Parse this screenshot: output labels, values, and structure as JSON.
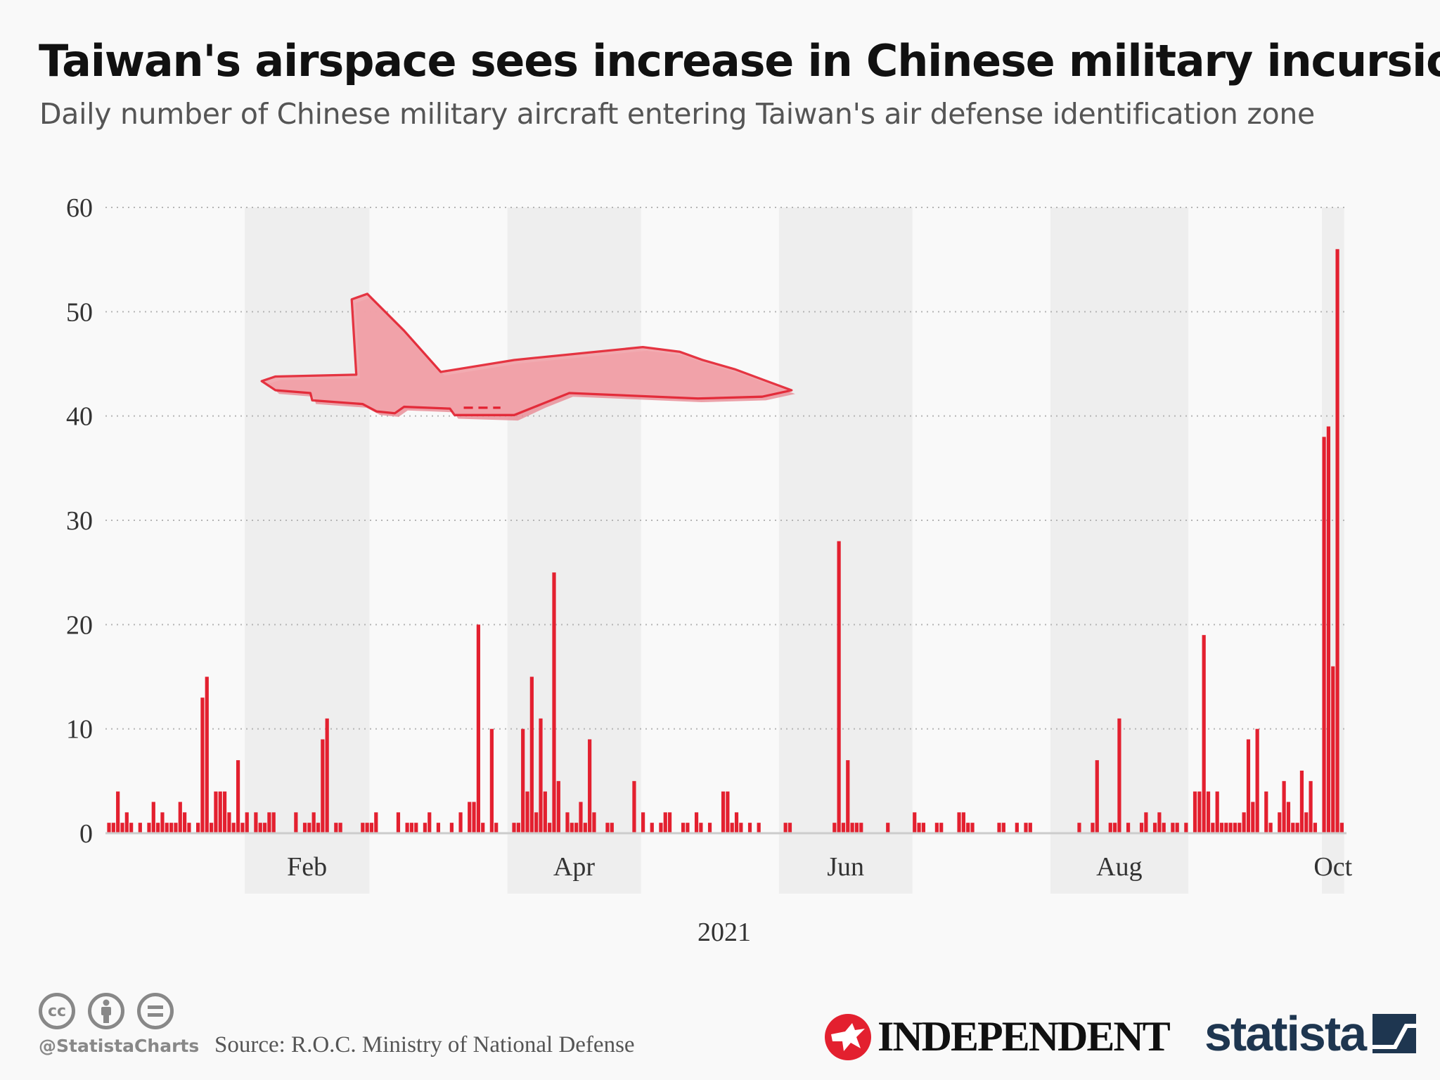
{
  "header": {
    "title": "Taiwan's airspace sees increase in Chinese military incursions",
    "subtitle": "Daily number of Chinese military aircraft entering Taiwan's air defense identification zone"
  },
  "footer": {
    "handle": "@StatistaCharts",
    "source": "Source: R.O.C. Ministry of National Defense",
    "license_icons": [
      "cc-icon",
      "attribution-icon",
      "no-derivatives-icon"
    ],
    "partner_logo": "INDEPENDENT",
    "brand_logo": "statista"
  },
  "chart_data": {
    "type": "bar",
    "title": "",
    "xlabel": "2021",
    "ylabel": "",
    "ylim": [
      0,
      60
    ],
    "yticks": [
      0,
      10,
      20,
      30,
      40,
      50,
      60
    ],
    "xlim": [
      "2021-01-01",
      "2021-10-05"
    ],
    "xtick_labels": [
      {
        "label": "Feb",
        "month": "2021-02"
      },
      {
        "label": "Apr",
        "month": "2021-04"
      },
      {
        "label": "Jun",
        "month": "2021-06"
      },
      {
        "label": "Aug",
        "month": "2021-08"
      },
      {
        "label": "Oct",
        "month": "2021-10"
      }
    ],
    "shaded_months": [
      "2021-02",
      "2021-04",
      "2021-06",
      "2021-08",
      "2021-10"
    ],
    "grid": "horizontal dotted",
    "bar_color": "#e3202f",
    "shade_color": "#eeeeee",
    "points": [
      [
        "2021-01-01",
        1
      ],
      [
        "2021-01-02",
        1
      ],
      [
        "2021-01-03",
        4
      ],
      [
        "2021-01-04",
        1
      ],
      [
        "2021-01-05",
        2
      ],
      [
        "2021-01-06",
        1
      ],
      [
        "2021-01-08",
        1
      ],
      [
        "2021-01-10",
        1
      ],
      [
        "2021-01-11",
        3
      ],
      [
        "2021-01-12",
        1
      ],
      [
        "2021-01-13",
        2
      ],
      [
        "2021-01-14",
        1
      ],
      [
        "2021-01-15",
        1
      ],
      [
        "2021-01-16",
        1
      ],
      [
        "2021-01-17",
        3
      ],
      [
        "2021-01-18",
        2
      ],
      [
        "2021-01-19",
        1
      ],
      [
        "2021-01-21",
        1
      ],
      [
        "2021-01-22",
        13
      ],
      [
        "2021-01-23",
        15
      ],
      [
        "2021-01-24",
        1
      ],
      [
        "2021-01-25",
        4
      ],
      [
        "2021-01-26",
        4
      ],
      [
        "2021-01-27",
        4
      ],
      [
        "2021-01-28",
        2
      ],
      [
        "2021-01-29",
        1
      ],
      [
        "2021-01-30",
        7
      ],
      [
        "2021-01-31",
        1
      ],
      [
        "2021-02-01",
        2
      ],
      [
        "2021-02-03",
        2
      ],
      [
        "2021-02-04",
        1
      ],
      [
        "2021-02-05",
        1
      ],
      [
        "2021-02-06",
        2
      ],
      [
        "2021-02-07",
        2
      ],
      [
        "2021-02-12",
        2
      ],
      [
        "2021-02-14",
        1
      ],
      [
        "2021-02-15",
        1
      ],
      [
        "2021-02-16",
        2
      ],
      [
        "2021-02-17",
        1
      ],
      [
        "2021-02-18",
        9
      ],
      [
        "2021-02-19",
        11
      ],
      [
        "2021-02-21",
        1
      ],
      [
        "2021-02-22",
        1
      ],
      [
        "2021-02-27",
        1
      ],
      [
        "2021-02-28",
        1
      ],
      [
        "2021-03-01",
        1
      ],
      [
        "2021-03-02",
        2
      ],
      [
        "2021-03-07",
        2
      ],
      [
        "2021-03-09",
        1
      ],
      [
        "2021-03-10",
        1
      ],
      [
        "2021-03-11",
        1
      ],
      [
        "2021-03-13",
        1
      ],
      [
        "2021-03-14",
        2
      ],
      [
        "2021-03-16",
        1
      ],
      [
        "2021-03-19",
        1
      ],
      [
        "2021-03-21",
        2
      ],
      [
        "2021-03-23",
        3
      ],
      [
        "2021-03-24",
        3
      ],
      [
        "2021-03-25",
        20
      ],
      [
        "2021-03-26",
        1
      ],
      [
        "2021-03-28",
        10
      ],
      [
        "2021-03-29",
        1
      ],
      [
        "2021-04-02",
        1
      ],
      [
        "2021-04-03",
        1
      ],
      [
        "2021-04-04",
        10
      ],
      [
        "2021-04-05",
        4
      ],
      [
        "2021-04-06",
        15
      ],
      [
        "2021-04-07",
        2
      ],
      [
        "2021-04-08",
        11
      ],
      [
        "2021-04-09",
        4
      ],
      [
        "2021-04-10",
        1
      ],
      [
        "2021-04-11",
        25
      ],
      [
        "2021-04-12",
        5
      ],
      [
        "2021-04-14",
        2
      ],
      [
        "2021-04-15",
        1
      ],
      [
        "2021-04-16",
        1
      ],
      [
        "2021-04-17",
        3
      ],
      [
        "2021-04-18",
        1
      ],
      [
        "2021-04-19",
        9
      ],
      [
        "2021-04-20",
        2
      ],
      [
        "2021-04-23",
        1
      ],
      [
        "2021-04-24",
        1
      ],
      [
        "2021-04-29",
        5
      ],
      [
        "2021-05-01",
        2
      ],
      [
        "2021-05-03",
        1
      ],
      [
        "2021-05-05",
        1
      ],
      [
        "2021-05-06",
        2
      ],
      [
        "2021-05-07",
        2
      ],
      [
        "2021-05-10",
        1
      ],
      [
        "2021-05-11",
        1
      ],
      [
        "2021-05-13",
        2
      ],
      [
        "2021-05-14",
        1
      ],
      [
        "2021-05-16",
        1
      ],
      [
        "2021-05-19",
        4
      ],
      [
        "2021-05-20",
        4
      ],
      [
        "2021-05-21",
        1
      ],
      [
        "2021-05-22",
        2
      ],
      [
        "2021-05-23",
        1
      ],
      [
        "2021-05-25",
        1
      ],
      [
        "2021-05-27",
        1
      ],
      [
        "2021-06-02",
        1
      ],
      [
        "2021-06-03",
        1
      ],
      [
        "2021-06-13",
        1
      ],
      [
        "2021-06-14",
        28
      ],
      [
        "2021-06-15",
        1
      ],
      [
        "2021-06-16",
        7
      ],
      [
        "2021-06-17",
        1
      ],
      [
        "2021-06-18",
        1
      ],
      [
        "2021-06-19",
        1
      ],
      [
        "2021-06-25",
        1
      ],
      [
        "2021-07-01",
        2
      ],
      [
        "2021-07-02",
        1
      ],
      [
        "2021-07-03",
        1
      ],
      [
        "2021-07-06",
        1
      ],
      [
        "2021-07-07",
        1
      ],
      [
        "2021-07-11",
        2
      ],
      [
        "2021-07-12",
        2
      ],
      [
        "2021-07-13",
        1
      ],
      [
        "2021-07-14",
        1
      ],
      [
        "2021-07-20",
        1
      ],
      [
        "2021-07-21",
        1
      ],
      [
        "2021-07-24",
        1
      ],
      [
        "2021-07-26",
        1
      ],
      [
        "2021-07-27",
        1
      ],
      [
        "2021-08-07",
        1
      ],
      [
        "2021-08-10",
        1
      ],
      [
        "2021-08-11",
        7
      ],
      [
        "2021-08-14",
        1
      ],
      [
        "2021-08-15",
        1
      ],
      [
        "2021-08-16",
        11
      ],
      [
        "2021-08-18",
        1
      ],
      [
        "2021-08-21",
        1
      ],
      [
        "2021-08-22",
        2
      ],
      [
        "2021-08-24",
        1
      ],
      [
        "2021-08-25",
        2
      ],
      [
        "2021-08-26",
        1
      ],
      [
        "2021-08-28",
        1
      ],
      [
        "2021-08-29",
        1
      ],
      [
        "2021-08-31",
        1
      ],
      [
        "2021-09-02",
        4
      ],
      [
        "2021-09-03",
        4
      ],
      [
        "2021-09-04",
        19
      ],
      [
        "2021-09-05",
        4
      ],
      [
        "2021-09-06",
        1
      ],
      [
        "2021-09-07",
        4
      ],
      [
        "2021-09-08",
        1
      ],
      [
        "2021-09-09",
        1
      ],
      [
        "2021-09-10",
        1
      ],
      [
        "2021-09-11",
        1
      ],
      [
        "2021-09-12",
        1
      ],
      [
        "2021-09-13",
        2
      ],
      [
        "2021-09-14",
        9
      ],
      [
        "2021-09-15",
        3
      ],
      [
        "2021-09-16",
        10
      ],
      [
        "2021-09-18",
        4
      ],
      [
        "2021-09-19",
        1
      ],
      [
        "2021-09-21",
        2
      ],
      [
        "2021-09-22",
        5
      ],
      [
        "2021-09-23",
        3
      ],
      [
        "2021-09-24",
        1
      ],
      [
        "2021-09-25",
        1
      ],
      [
        "2021-09-26",
        6
      ],
      [
        "2021-09-27",
        2
      ],
      [
        "2021-09-28",
        5
      ],
      [
        "2021-09-29",
        1
      ],
      [
        "2021-10-01",
        38
      ],
      [
        "2021-10-02",
        39
      ],
      [
        "2021-10-03",
        16
      ],
      [
        "2021-10-04",
        56
      ],
      [
        "2021-10-05",
        1
      ]
    ]
  }
}
